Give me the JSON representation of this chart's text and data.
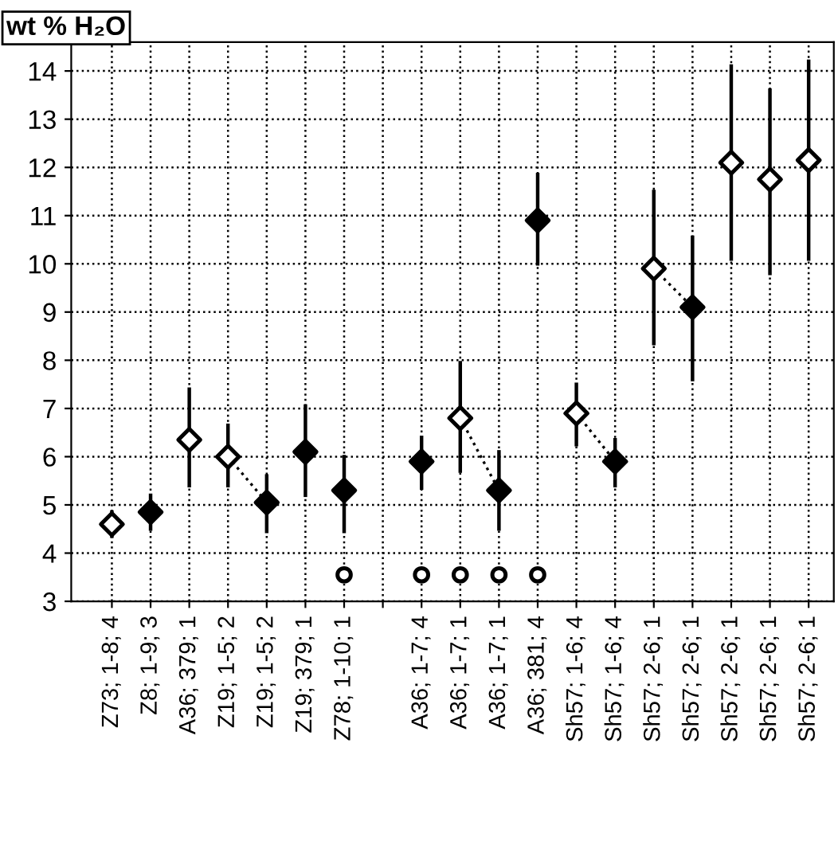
{
  "chart_data": {
    "type": "scatter",
    "ylabel": "wt % H₂O",
    "categories": [
      "Z73; 1-8; 4",
      "Z8; 1-9; 3",
      "A36; 379; 1",
      "Z19; 1-5; 2",
      "Z19; 1-5; 2",
      "Z19; 379; 1",
      "Z78; 1-10; 1",
      null,
      "A36; 1-7; 4",
      "A36; 1-7; 1",
      "A36; 1-7; 1",
      "A36; 381; 4",
      "Sh57; 1-6; 4",
      "Sh57; 1-6; 4",
      "Sh57; 2-6; 1",
      "Sh57; 2-6; 1",
      "Sh57; 2-6; 1",
      "Sh57; 2-6; 1",
      "Sh57; 2-6; 1"
    ],
    "ylim": [
      3,
      14.6
    ],
    "yticks": [
      3,
      4,
      5,
      6,
      7,
      8,
      9,
      10,
      11,
      12,
      13,
      14
    ],
    "grid": true,
    "marker": "diamond",
    "series": [
      {
        "type": "line",
        "color": "#000000",
        "line_style": "dotted",
        "marker": "none",
        "values": [
          null,
          null,
          null,
          6.0,
          5.05,
          null,
          null,
          null,
          null,
          6.8,
          5.3,
          null,
          null,
          null,
          9.9,
          9.1,
          null,
          null,
          null
        ]
      },
      {
        "type": "line",
        "color": "#000000",
        "line_style": "dotted",
        "marker": "none",
        "values": [
          null,
          null,
          null,
          null,
          null,
          null,
          null,
          null,
          null,
          null,
          null,
          null,
          6.9,
          5.9,
          null,
          null,
          null,
          null,
          null
        ]
      },
      {
        "color": "#ffffff",
        "values": [
          4.6,
          null,
          6.35,
          6.0,
          null,
          null,
          null,
          null,
          null,
          6.8,
          null,
          null,
          6.9,
          null,
          9.9,
          null,
          12.1,
          11.75,
          12.15
        ],
        "errors": [
          [
            4.35,
            4.85
          ],
          null,
          [
            5.4,
            7.4
          ],
          [
            5.4,
            6.65
          ],
          null,
          null,
          null,
          null,
          null,
          [
            5.7,
            7.95
          ],
          null,
          null,
          [
            6.25,
            7.5
          ],
          null,
          [
            8.35,
            11.5
          ],
          null,
          [
            10.1,
            14.1
          ],
          [
            9.8,
            13.6
          ],
          [
            10.1,
            14.2
          ]
        ]
      },
      {
        "color": "#000000",
        "values": [
          null,
          4.85,
          null,
          null,
          5.05,
          6.1,
          5.3,
          null,
          5.9,
          null,
          5.3,
          10.9,
          null,
          5.9,
          null,
          9.1,
          null,
          null,
          null
        ],
        "errors": [
          null,
          [
            4.5,
            5.2
          ],
          null,
          null,
          [
            4.45,
            5.6
          ],
          [
            5.2,
            7.05
          ],
          [
            4.45,
            6.0
          ],
          null,
          [
            5.35,
            6.4
          ],
          null,
          [
            4.5,
            6.1
          ],
          [
            10.0,
            11.85
          ],
          null,
          [
            5.4,
            6.35
          ],
          null,
          [
            7.6,
            10.55
          ],
          null,
          null,
          null
        ]
      },
      {
        "color": "#ffffff",
        "marker": "circle",
        "values": [
          null,
          null,
          null,
          null,
          null,
          null,
          3.55,
          null,
          3.55,
          3.55,
          3.55,
          3.55,
          null,
          null,
          null,
          null,
          null,
          null,
          null
        ]
      }
    ]
  }
}
